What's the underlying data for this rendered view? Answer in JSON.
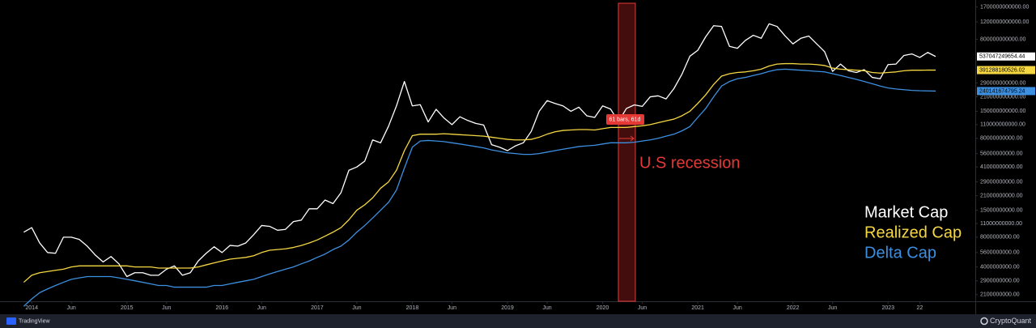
{
  "chart_data": {
    "type": "line",
    "log_scale": true,
    "annotations": [
      "U.S recession",
      "61 bars, 61d"
    ],
    "x": [
      "2013-12",
      "2014-01",
      "2014-02",
      "2014-03",
      "2014-04",
      "2014-05",
      "2014-06",
      "2014-07",
      "2014-08",
      "2014-09",
      "2014-10",
      "2014-11",
      "2014-12",
      "2015-01",
      "2015-02",
      "2015-03",
      "2015-04",
      "2015-05",
      "2015-06",
      "2015-07",
      "2015-08",
      "2015-09",
      "2015-10",
      "2015-11",
      "2015-12",
      "2016-01",
      "2016-02",
      "2016-03",
      "2016-04",
      "2016-05",
      "2016-06",
      "2016-07",
      "2016-08",
      "2016-09",
      "2016-10",
      "2016-11",
      "2016-12",
      "2017-01",
      "2017-02",
      "2017-03",
      "2017-04",
      "2017-05",
      "2017-06",
      "2017-07",
      "2017-08",
      "2017-09",
      "2017-10",
      "2017-11",
      "2017-12",
      "2018-01",
      "2018-02",
      "2018-03",
      "2018-04",
      "2018-05",
      "2018-06",
      "2018-07",
      "2018-08",
      "2018-09",
      "2018-10",
      "2018-11",
      "2018-12",
      "2019-01",
      "2019-02",
      "2019-03",
      "2019-04",
      "2019-05",
      "2019-06",
      "2019-07",
      "2019-08",
      "2019-09",
      "2019-10",
      "2019-11",
      "2019-12",
      "2020-01",
      "2020-02",
      "2020-03",
      "2020-04",
      "2020-05",
      "2020-06",
      "2020-07",
      "2020-08",
      "2020-09",
      "2020-10",
      "2020-11",
      "2020-12",
      "2021-01",
      "2021-02",
      "2021-03",
      "2021-04",
      "2021-05",
      "2021-06",
      "2021-07",
      "2021-08",
      "2021-09",
      "2021-10",
      "2021-11",
      "2021-12",
      "2022-01",
      "2022-02",
      "2022-03",
      "2022-04",
      "2022-05",
      "2022-06",
      "2022-07",
      "2022-08",
      "2022-09",
      "2022-10",
      "2022-11",
      "2022-12",
      "2023-01",
      "2023-02",
      "2023-03",
      "2023-04",
      "2023-05",
      "2023-06",
      "2023-07"
    ],
    "series": [
      {
        "name": "Market Cap",
        "color": "#ffffff",
        "values": [
          9000000000,
          10000000000,
          7000000000,
          5600000000,
          5500000000,
          8000000000,
          8000000000,
          7600000000,
          6500000000,
          5300000000,
          4500000000,
          5100000000,
          4300000000,
          3200000000,
          3500000000,
          3500000000,
          3300000000,
          3300000000,
          3800000000,
          4100000000,
          3300000000,
          3500000000,
          4600000000,
          5500000000,
          6400000000,
          5600000000,
          6600000000,
          6500000000,
          7000000000,
          8500000000,
          10500000000,
          10300000000,
          9400000000,
          9600000000,
          11500000000,
          11900000000,
          15500000000,
          15500000000,
          19000000000,
          17500000000,
          22500000000,
          38000000000,
          41000000000,
          47000000000,
          77000000000,
          72000000000,
          106000000000,
          170000000000,
          300000000000,
          170000000000,
          175000000000,
          117000000000,
          157000000000,
          128000000000,
          110000000000,
          132000000000,
          121000000000,
          113000000000,
          109000000000,
          69000000000,
          65000000000,
          60000000000,
          67000000000,
          72000000000,
          94000000000,
          150000000000,
          192000000000,
          180000000000,
          170000000000,
          150000000000,
          165000000000,
          135000000000,
          130000000000,
          170000000000,
          158000000000,
          118000000000,
          160000000000,
          174000000000,
          168000000000,
          210000000000,
          215000000000,
          200000000000,
          255000000000,
          355000000000,
          540000000000,
          620000000000,
          850000000000,
          1100000000000,
          1080000000000,
          680000000000,
          650000000000,
          780000000000,
          880000000000,
          820000000000,
          1150000000000,
          1080000000000,
          870000000000,
          720000000000,
          820000000000,
          865000000000,
          720000000000,
          600000000000,
          380000000000,
          450000000000,
          385000000000,
          370000000000,
          395000000000,
          330000000000,
          320000000000,
          445000000000,
          450000000000,
          550000000000,
          570000000000,
          525000000000,
          590000000000,
          537047249654.44
        ]
      },
      {
        "name": "Realized Cap",
        "color": "#f5d742",
        "values": [
          2800000000,
          3300000000,
          3500000000,
          3600000000,
          3700000000,
          3800000000,
          4000000000,
          4100000000,
          4100000000,
          4100000000,
          4100000000,
          4100000000,
          4100000000,
          4100000000,
          4000000000,
          4000000000,
          4000000000,
          3900000000,
          3900000000,
          3900000000,
          3900000000,
          3900000000,
          4000000000,
          4200000000,
          4400000000,
          4600000000,
          4800000000,
          4900000000,
          5000000000,
          5200000000,
          5600000000,
          5900000000,
          6000000000,
          6100000000,
          6300000000,
          6600000000,
          7000000000,
          7500000000,
          8200000000,
          9000000000,
          10000000000,
          12000000000,
          15000000000,
          17000000000,
          20000000000,
          25000000000,
          29000000000,
          38000000000,
          60000000000,
          85000000000,
          88000000000,
          88000000000,
          88000000000,
          89000000000,
          88000000000,
          87000000000,
          86000000000,
          85000000000,
          84000000000,
          82000000000,
          80000000000,
          78000000000,
          77000000000,
          77000000000,
          78000000000,
          82000000000,
          88000000000,
          93000000000,
          96000000000,
          97000000000,
          98000000000,
          98000000000,
          97000000000,
          100000000000,
          103000000000,
          103000000000,
          103000000000,
          105000000000,
          107000000000,
          110000000000,
          115000000000,
          120000000000,
          125000000000,
          135000000000,
          150000000000,
          180000000000,
          220000000000,
          280000000000,
          340000000000,
          360000000000,
          370000000000,
          375000000000,
          385000000000,
          400000000000,
          430000000000,
          450000000000,
          455000000000,
          455000000000,
          450000000000,
          450000000000,
          445000000000,
          435000000000,
          410000000000,
          400000000000,
          395000000000,
          390000000000,
          385000000000,
          370000000000,
          365000000000,
          370000000000,
          375000000000,
          385000000000,
          390000000000,
          390000000000,
          391000000000,
          391288180526.02
        ]
      },
      {
        "name": "Delta Cap",
        "color": "#3d8fe0",
        "values": [
          1600000000,
          1900000000,
          2200000000,
          2400000000,
          2600000000,
          2800000000,
          3000000000,
          3100000000,
          3200000000,
          3200000000,
          3200000000,
          3200000000,
          3100000000,
          3000000000,
          2900000000,
          2800000000,
          2700000000,
          2600000000,
          2600000000,
          2500000000,
          2500000000,
          2500000000,
          2500000000,
          2500000000,
          2600000000,
          2600000000,
          2700000000,
          2800000000,
          2900000000,
          3000000000,
          3200000000,
          3400000000,
          3600000000,
          3800000000,
          4000000000,
          4300000000,
          4600000000,
          5000000000,
          5400000000,
          6000000000,
          6500000000,
          7500000000,
          9000000000,
          10500000000,
          12500000000,
          15000000000,
          18000000000,
          24000000000,
          40000000000,
          65000000000,
          75000000000,
          76000000000,
          75000000000,
          74000000000,
          72000000000,
          70000000000,
          68000000000,
          66000000000,
          64000000000,
          61000000000,
          59000000000,
          57000000000,
          56000000000,
          55000000000,
          55000000000,
          56000000000,
          58000000000,
          60000000000,
          62000000000,
          64000000000,
          66000000000,
          67000000000,
          68000000000,
          70000000000,
          72000000000,
          72000000000,
          72000000000,
          73000000000,
          75000000000,
          77000000000,
          80000000000,
          84000000000,
          88000000000,
          95000000000,
          105000000000,
          130000000000,
          160000000000,
          210000000000,
          270000000000,
          300000000000,
          320000000000,
          330000000000,
          345000000000,
          360000000000,
          380000000000,
          395000000000,
          400000000000,
          395000000000,
          390000000000,
          385000000000,
          380000000000,
          375000000000,
          360000000000,
          345000000000,
          330000000000,
          315000000000,
          300000000000,
          285000000000,
          270000000000,
          258000000000,
          252000000000,
          248000000000,
          244000000000,
          242000000000,
          241000000000,
          240141674795.24
        ]
      }
    ],
    "xlim": [
      "2013-09",
      "2023-12"
    ],
    "xticks": [
      {
        "value": "2014-01",
        "label": "2014"
      },
      {
        "value": "2014-06",
        "label": "Jun"
      },
      {
        "value": "2015-01",
        "label": "2015"
      },
      {
        "value": "2015-06",
        "label": "Jun"
      },
      {
        "value": "2016-01",
        "label": "2016"
      },
      {
        "value": "2016-06",
        "label": "Jun"
      },
      {
        "value": "2017-01",
        "label": "2017"
      },
      {
        "value": "2017-06",
        "label": "Jun"
      },
      {
        "value": "2018-01",
        "label": "2018"
      },
      {
        "value": "2018-06",
        "label": "Jun"
      },
      {
        "value": "2019-01",
        "label": "2019"
      },
      {
        "value": "2019-06",
        "label": "Jun"
      },
      {
        "value": "2020-01",
        "label": "2020"
      },
      {
        "value": "2020-06",
        "label": "Jun"
      },
      {
        "value": "2021-01",
        "label": "2021"
      },
      {
        "value": "2021-06",
        "label": "Jun"
      },
      {
        "value": "2022-01",
        "label": "2022"
      },
      {
        "value": "2022-06",
        "label": "Jun"
      },
      {
        "value": "2023-01",
        "label": "2023"
      },
      {
        "value": "2023-05",
        "label": "22"
      }
    ],
    "ylim": [
      1800000000,
      2000000000000
    ],
    "yticks": [
      {
        "value": 1700000000000,
        "label": "1700000000000.00"
      },
      {
        "value": 1200000000000,
        "label": "1200000000000.00"
      },
      {
        "value": 800000000000,
        "label": "800000000000.00"
      },
      {
        "value": 290000000000,
        "label": "290000000000.00"
      },
      {
        "value": 210000000000,
        "label": "210000000000.00"
      },
      {
        "value": 150000000000,
        "label": "150000000000.00"
      },
      {
        "value": 110000000000,
        "label": "110000000000.00"
      },
      {
        "value": 80000000000,
        "label": "80000000000.00"
      },
      {
        "value": 56000000000,
        "label": "56000000000.00"
      },
      {
        "value": 41000000000,
        "label": "41000000000.00"
      },
      {
        "value": 29000000000,
        "label": "29000000000.00"
      },
      {
        "value": 21000000000,
        "label": "21000000000.00"
      },
      {
        "value": 15000000000,
        "label": "15000000000.00"
      },
      {
        "value": 11000000000,
        "label": "11000000000.00"
      },
      {
        "value": 8000000000,
        "label": "8000000000.00"
      },
      {
        "value": 5600000000,
        "label": "5600000000.00"
      },
      {
        "value": 4000000000,
        "label": "4000000000.00"
      },
      {
        "value": 2900000000,
        "label": "2900000000.00"
      },
      {
        "value": 2100000000,
        "label": "2100000000.00"
      }
    ]
  },
  "brand": {
    "left": "TradingView",
    "right": "CryptoQuant"
  }
}
